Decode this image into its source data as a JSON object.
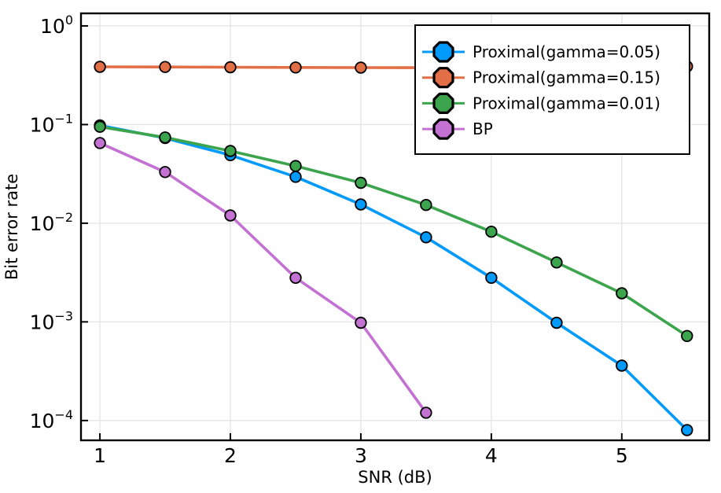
{
  "figure": {
    "xlabel": "SNR (dB)",
    "ylabel": "Bit error rate"
  },
  "chart_data": {
    "type": "line",
    "title": "",
    "xlabel": "SNR (dB)",
    "ylabel": "Bit error rate",
    "x_scale": "linear",
    "y_scale": "log10",
    "xlim": [
      0.855,
      5.67
    ],
    "ylim": [
      6.3e-05,
      1.34
    ],
    "x_ticks": [
      1,
      2,
      3,
      4,
      5
    ],
    "y_tick_exponents": [
      0,
      -1,
      -2,
      -3,
      -4
    ],
    "grid": true,
    "legend_position": "top-right",
    "marker": "octagon",
    "series": [
      {
        "name": "Proximal(gamma=0.05)",
        "color": "#009AFA",
        "x": [
          1,
          1.5,
          2,
          2.5,
          3,
          3.5,
          4,
          4.5,
          5,
          5.5
        ],
        "y": [
          0.098,
          0.073,
          0.049,
          0.0295,
          0.0155,
          0.0072,
          0.0028,
          0.00098,
          0.00036,
          8e-05
        ]
      },
      {
        "name": "Proximal(gamma=0.15)",
        "color": "#E36F47",
        "x": [
          1,
          1.5,
          2,
          2.5,
          3,
          3.5,
          4,
          4.5,
          5,
          5.5
        ],
        "y": [
          0.385,
          0.383,
          0.381,
          0.379,
          0.378,
          0.377,
          0.377,
          0.378,
          0.38,
          0.388
        ]
      },
      {
        "name": "Proximal(gamma=0.01)",
        "color": "#3DA44E",
        "x": [
          1,
          1.5,
          2,
          2.5,
          3,
          3.5,
          4,
          4.5,
          5,
          5.5
        ],
        "y": [
          0.095,
          0.074,
          0.054,
          0.038,
          0.0257,
          0.0153,
          0.0082,
          0.004,
          0.00195,
          0.00072
        ]
      },
      {
        "name": "BP",
        "color": "#C371D2",
        "x": [
          1,
          1.5,
          2,
          2.5,
          3,
          3.5
        ],
        "y": [
          0.065,
          0.033,
          0.012,
          0.0028,
          0.00098,
          0.00012
        ]
      }
    ],
    "colors": {
      "background": "#FFFFFF",
      "grid": "#E4E4E4",
      "spine": "#000000",
      "text": "#000000",
      "marker_stroke": "#000000",
      "legend_border": "#000000",
      "legend_fill": "#FFFFFF"
    }
  }
}
